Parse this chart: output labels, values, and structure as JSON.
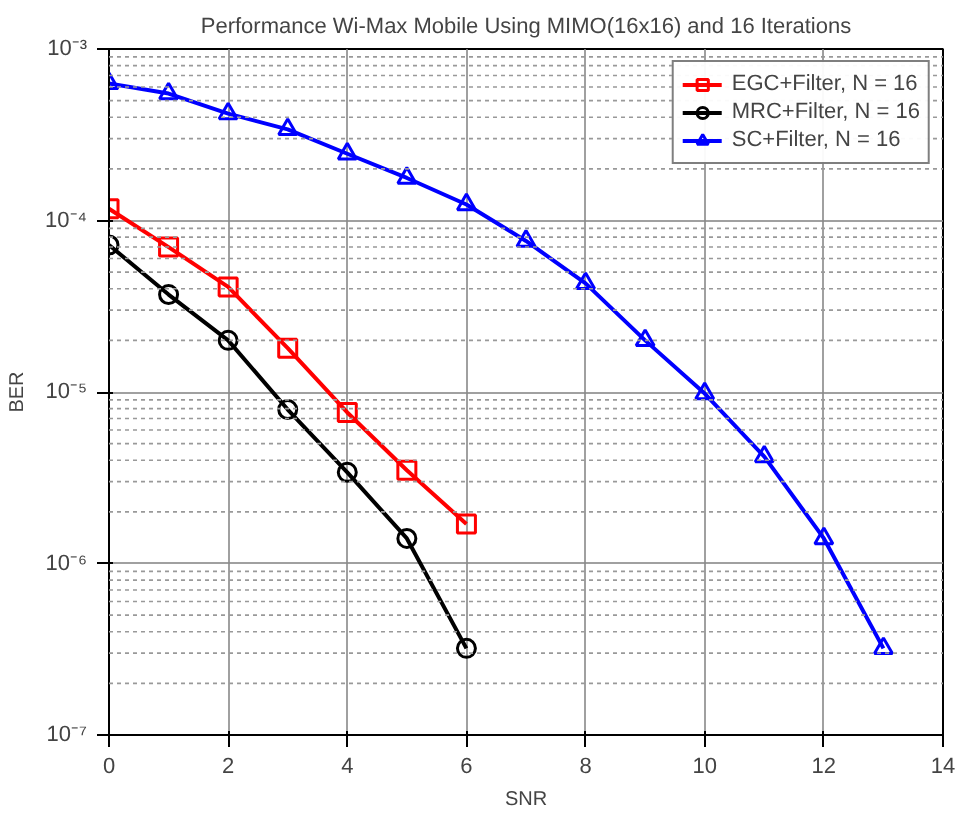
{
  "chart_data": {
    "type": "line",
    "title": "Performance Wi-Max Mobile Using MIMO(16x16) and 16 Iterations",
    "xlabel": "SNR",
    "ylabel": "BER",
    "x": [
      0,
      1,
      2,
      3,
      4,
      5,
      6,
      7,
      8,
      9,
      10,
      11,
      12,
      13
    ],
    "series": [
      {
        "name": "EGC+Filter, N = 16",
        "color": "#ff0000",
        "marker": "square",
        "values": [
          0.000117,
          7e-05,
          4.1e-05,
          1.8e-05,
          7.6e-06,
          3.5e-06,
          1.7e-06,
          null,
          null,
          null,
          null,
          null,
          null,
          null
        ]
      },
      {
        "name": "MRC+Filter, N = 16",
        "color": "#000000",
        "marker": "circle",
        "values": [
          7.2e-05,
          3.7e-05,
          2e-05,
          7.9e-06,
          3.4e-06,
          1.4e-06,
          3.2e-07,
          null,
          null,
          null,
          null,
          null,
          null,
          null
        ]
      },
      {
        "name": "SC+Filter, N = 16",
        "color": "#0000ff",
        "marker": "triangle",
        "values": [
          0.00063,
          0.00055,
          0.00042,
          0.00034,
          0.000245,
          0.000177,
          0.000124,
          7.6e-05,
          4.3e-05,
          2e-05,
          9.8e-06,
          4.2e-06,
          1.4e-06,
          3.2e-07
        ]
      }
    ],
    "log": "y",
    "xlim": [
      0,
      14
    ],
    "xticks": [
      0,
      2,
      4,
      6,
      8,
      10,
      12,
      14
    ],
    "ylim": [
      1e-07,
      0.001
    ],
    "yticks": [
      {
        "value": 1e-07,
        "label": "10⁻⁷"
      },
      {
        "value": 1e-06,
        "label": "10⁻⁶"
      },
      {
        "value": 1e-05,
        "label": "10⁻⁵"
      },
      {
        "value": 0.0001,
        "label": "10⁻⁴"
      },
      {
        "value": 0.001,
        "label": "10⁻³"
      }
    ],
    "grid": true,
    "legend": "top right",
    "line_style": "solid"
  }
}
